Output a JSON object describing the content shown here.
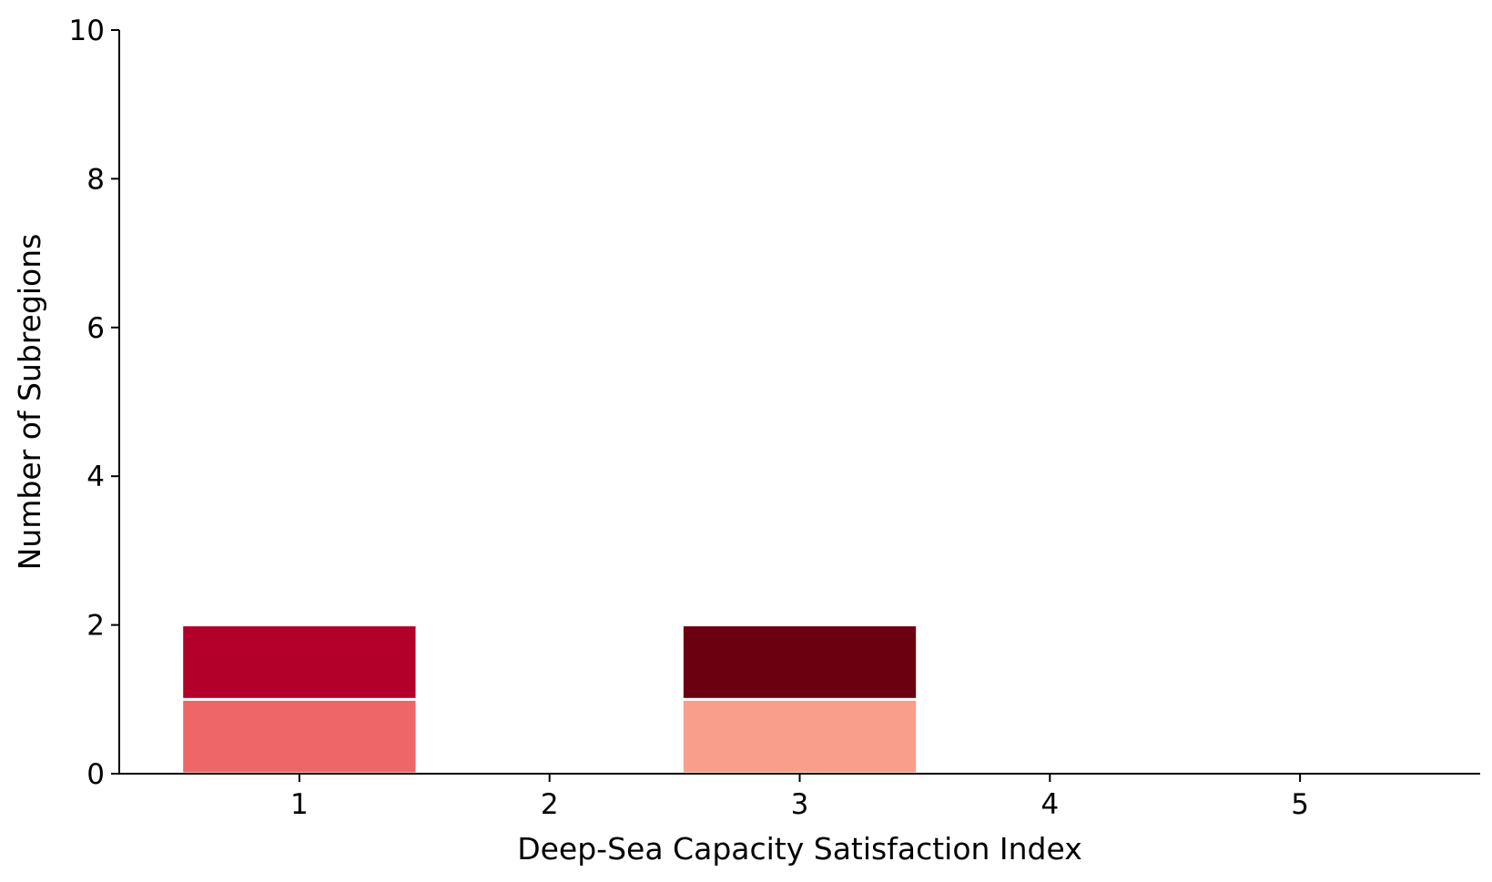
{
  "chart_data": {
    "type": "bar",
    "stacked": true,
    "xlabel": "Deep-Sea Capacity Satisfaction Index",
    "ylabel": "Number of Subregions",
    "x": [
      1,
      2,
      3,
      4,
      5
    ],
    "x_tick_labels": [
      "1",
      "2",
      "3",
      "4",
      "5"
    ],
    "xlim": [
      0.28,
      5.72
    ],
    "ylim": [
      0,
      10
    ],
    "y_ticks": [
      0,
      2,
      4,
      6,
      8,
      10
    ],
    "y_tick_labels": [
      "0",
      "2",
      "4",
      "6",
      "8",
      "10"
    ],
    "bar_width": 0.94,
    "grid": false,
    "legend": "none",
    "series": [
      {
        "values": [
          1,
          0,
          0,
          0,
          0
        ],
        "color": "#ee6766"
      },
      {
        "values": [
          1,
          0,
          0,
          0,
          0
        ],
        "color": "#b3002a"
      },
      {
        "values": [
          0,
          0,
          1,
          0,
          0
        ],
        "color": "#f89e8a"
      },
      {
        "values": [
          0,
          0,
          1,
          0,
          0
        ],
        "color": "#6b0010"
      }
    ]
  }
}
